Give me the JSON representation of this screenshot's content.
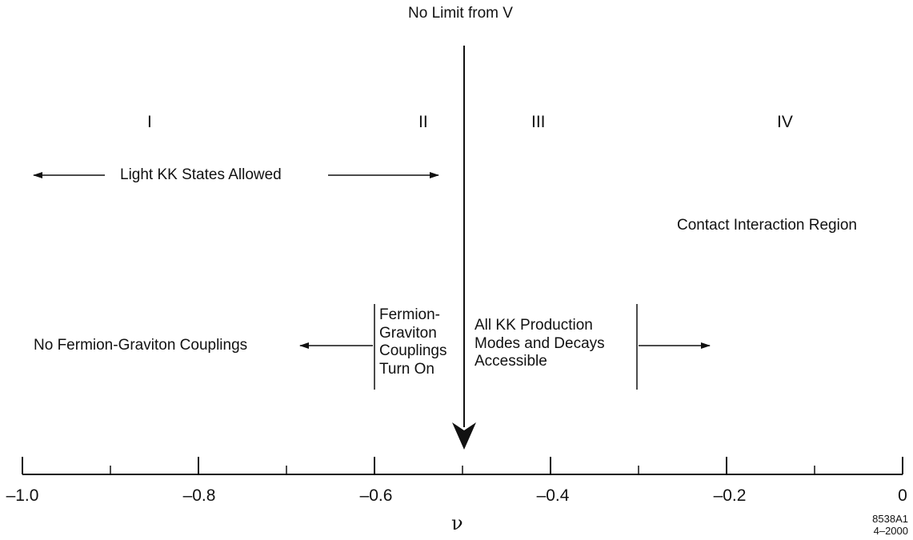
{
  "top_label": "No Limit from V",
  "regions": [
    "I",
    "II",
    "III",
    "IV"
  ],
  "light_kk": "Light KK States Allowed",
  "contact": "Contact Interaction Region",
  "no_coupling": "No Fermion-Graviton Couplings",
  "turn_on": [
    "Fermion-",
    "Graviton",
    "Couplings",
    "Turn On"
  ],
  "all_kk": [
    "All KK Production",
    "Modes and Decays",
    "Accessible"
  ],
  "axis": {
    "title": "ν",
    "min": -1.0,
    "max": 0,
    "major_ticks": [
      -1.0,
      -0.8,
      -0.6,
      -0.4,
      -0.2,
      0
    ],
    "tick_labels": [
      "–1.0",
      "–0.8",
      "–0.6",
      "–0.4",
      "–0.2",
      "0"
    ],
    "minor_ticks": [
      -0.9,
      -0.7,
      -0.5,
      -0.3,
      -0.1
    ]
  },
  "marker_value": -0.5,
  "figure_id": [
    "8538A1",
    "4–2000"
  ]
}
